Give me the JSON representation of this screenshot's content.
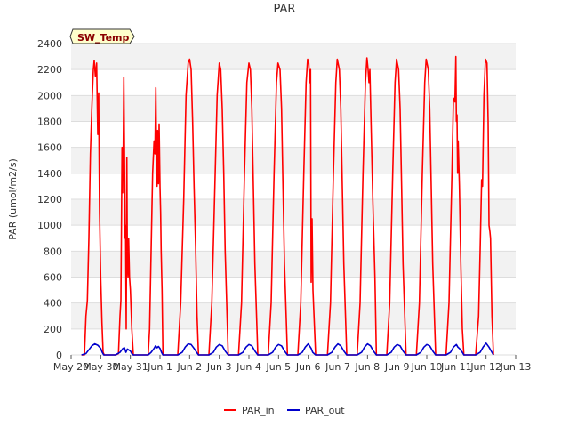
{
  "chart_data": {
    "type": "line",
    "title": "PAR",
    "xlabel": "",
    "ylabel": "PAR (umol/m2/s)",
    "badge": "SW_Temp",
    "ylim": [
      0,
      2400
    ],
    "xlim": [
      0,
      15
    ],
    "y_ticks": [
      0,
      200,
      400,
      600,
      800,
      1000,
      1200,
      1400,
      1600,
      1800,
      2000,
      2200,
      2400
    ],
    "x_ticks": [
      {
        "pos": 0,
        "label": "May 29"
      },
      {
        "pos": 1,
        "label": "May 30"
      },
      {
        "pos": 2,
        "label": "May 31"
      },
      {
        "pos": 3,
        "label": "Jun 1"
      },
      {
        "pos": 4,
        "label": "Jun 2"
      },
      {
        "pos": 5,
        "label": "Jun 3"
      },
      {
        "pos": 6,
        "label": "Jun 4"
      },
      {
        "pos": 7,
        "label": "Jun 5"
      },
      {
        "pos": 8,
        "label": "Jun 6"
      },
      {
        "pos": 9,
        "label": "Jun 7"
      },
      {
        "pos": 10,
        "label": "Jun 8"
      },
      {
        "pos": 11,
        "label": "Jun 9"
      },
      {
        "pos": 12,
        "label": "Jun 10"
      },
      {
        "pos": 13,
        "label": "Jun 11"
      },
      {
        "pos": 14,
        "label": "Jun 12"
      },
      {
        "pos": 15,
        "label": "Jun 13"
      }
    ],
    "series": [
      {
        "name": "PAR_in",
        "color": "#ff0000",
        "points": [
          [
            0.35,
            0
          ],
          [
            0.45,
            0
          ],
          [
            0.5,
            300
          ],
          [
            0.55,
            420
          ],
          [
            0.6,
            900
          ],
          [
            0.65,
            1550
          ],
          [
            0.7,
            1900
          ],
          [
            0.75,
            2200
          ],
          [
            0.78,
            2270
          ],
          [
            0.82,
            2150
          ],
          [
            0.86,
            2250
          ],
          [
            0.9,
            1700
          ],
          [
            0.93,
            2020
          ],
          [
            0.96,
            1100
          ],
          [
            1.0,
            600
          ],
          [
            1.04,
            250
          ],
          [
            1.08,
            20
          ],
          [
            1.12,
            0
          ],
          [
            1.5,
            0
          ],
          [
            1.6,
            10
          ],
          [
            1.65,
            300
          ],
          [
            1.68,
            420
          ],
          [
            1.72,
            1600
          ],
          [
            1.74,
            1250
          ],
          [
            1.76,
            1600
          ],
          [
            1.78,
            2140
          ],
          [
            1.8,
            1600
          ],
          [
            1.82,
            900
          ],
          [
            1.84,
            1000
          ],
          [
            1.86,
            200
          ],
          [
            1.88,
            1520
          ],
          [
            1.9,
            700
          ],
          [
            1.92,
            600
          ],
          [
            1.94,
            900
          ],
          [
            1.97,
            600
          ],
          [
            2.0,
            500
          ],
          [
            2.05,
            200
          ],
          [
            2.1,
            0
          ],
          [
            2.6,
            0
          ],
          [
            2.65,
            200
          ],
          [
            2.7,
            800
          ],
          [
            2.75,
            1400
          ],
          [
            2.8,
            1650
          ],
          [
            2.83,
            1550
          ],
          [
            2.86,
            2060
          ],
          [
            2.88,
            1600
          ],
          [
            2.9,
            1300
          ],
          [
            2.92,
            1730
          ],
          [
            2.95,
            1320
          ],
          [
            2.97,
            1780
          ],
          [
            3.0,
            1300
          ],
          [
            3.02,
            1100
          ],
          [
            3.04,
            800
          ],
          [
            3.07,
            500
          ],
          [
            3.1,
            0
          ],
          [
            3.6,
            0
          ],
          [
            3.7,
            400
          ],
          [
            3.8,
            1200
          ],
          [
            3.88,
            2000
          ],
          [
            3.95,
            2250
          ],
          [
            4.0,
            2280
          ],
          [
            4.05,
            2200
          ],
          [
            4.1,
            1800
          ],
          [
            4.15,
            1300
          ],
          [
            4.2,
            850
          ],
          [
            4.25,
            300
          ],
          [
            4.3,
            0
          ],
          [
            4.65,
            0
          ],
          [
            4.75,
            400
          ],
          [
            4.85,
            1300
          ],
          [
            4.93,
            2000
          ],
          [
            5.0,
            2250
          ],
          [
            5.05,
            2200
          ],
          [
            5.1,
            1900
          ],
          [
            5.15,
            1400
          ],
          [
            5.2,
            800
          ],
          [
            5.3,
            0
          ],
          [
            5.65,
            0
          ],
          [
            5.75,
            400
          ],
          [
            5.85,
            1400
          ],
          [
            5.93,
            2100
          ],
          [
            6.0,
            2250
          ],
          [
            6.05,
            2200
          ],
          [
            6.1,
            1900
          ],
          [
            6.15,
            1300
          ],
          [
            6.2,
            700
          ],
          [
            6.3,
            0
          ],
          [
            6.65,
            0
          ],
          [
            6.75,
            400
          ],
          [
            6.85,
            1400
          ],
          [
            6.93,
            2100
          ],
          [
            6.98,
            2250
          ],
          [
            7.05,
            2200
          ],
          [
            7.1,
            1900
          ],
          [
            7.15,
            1300
          ],
          [
            7.2,
            700
          ],
          [
            7.3,
            0
          ],
          [
            7.65,
            0
          ],
          [
            7.75,
            400
          ],
          [
            7.85,
            1400
          ],
          [
            7.93,
            2100
          ],
          [
            7.98,
            2280
          ],
          [
            8.02,
            2250
          ],
          [
            8.05,
            2100
          ],
          [
            8.08,
            2200
          ],
          [
            8.1,
            560
          ],
          [
            8.13,
            1050
          ],
          [
            8.16,
            500
          ],
          [
            8.25,
            0
          ],
          [
            8.65,
            0
          ],
          [
            8.75,
            400
          ],
          [
            8.85,
            1400
          ],
          [
            8.93,
            2100
          ],
          [
            8.98,
            2280
          ],
          [
            9.05,
            2200
          ],
          [
            9.1,
            1900
          ],
          [
            9.15,
            1300
          ],
          [
            9.2,
            700
          ],
          [
            9.3,
            0
          ],
          [
            9.65,
            0
          ],
          [
            9.75,
            400
          ],
          [
            9.85,
            1400
          ],
          [
            9.93,
            2100
          ],
          [
            9.98,
            2290
          ],
          [
            10.02,
            2200
          ],
          [
            10.05,
            2100
          ],
          [
            10.08,
            2200
          ],
          [
            10.12,
            1800
          ],
          [
            10.18,
            1200
          ],
          [
            10.25,
            600
          ],
          [
            10.3,
            0
          ],
          [
            10.65,
            0
          ],
          [
            10.75,
            400
          ],
          [
            10.85,
            1400
          ],
          [
            10.93,
            2100
          ],
          [
            10.98,
            2280
          ],
          [
            11.05,
            2200
          ],
          [
            11.1,
            1900
          ],
          [
            11.15,
            1300
          ],
          [
            11.2,
            700
          ],
          [
            11.3,
            0
          ],
          [
            11.65,
            0
          ],
          [
            11.75,
            400
          ],
          [
            11.85,
            1400
          ],
          [
            11.93,
            2100
          ],
          [
            11.98,
            2280
          ],
          [
            12.05,
            2200
          ],
          [
            12.1,
            1900
          ],
          [
            12.15,
            1300
          ],
          [
            12.2,
            700
          ],
          [
            12.3,
            0
          ],
          [
            12.65,
            0
          ],
          [
            12.75,
            400
          ],
          [
            12.85,
            1400
          ],
          [
            12.9,
            1980
          ],
          [
            12.95,
            1950
          ],
          [
            12.98,
            2300
          ],
          [
            13.0,
            1800
          ],
          [
            13.02,
            1850
          ],
          [
            13.04,
            1400
          ],
          [
            13.06,
            1650
          ],
          [
            13.1,
            1300
          ],
          [
            13.15,
            700
          ],
          [
            13.2,
            200
          ],
          [
            13.25,
            0
          ],
          [
            13.65,
            0
          ],
          [
            13.75,
            300
          ],
          [
            13.8,
            800
          ],
          [
            13.85,
            1350
          ],
          [
            13.88,
            1300
          ],
          [
            13.93,
            2000
          ],
          [
            13.98,
            2280
          ],
          [
            14.03,
            2250
          ],
          [
            14.07,
            1800
          ],
          [
            14.1,
            1000
          ],
          [
            14.13,
            950
          ],
          [
            14.15,
            900
          ],
          [
            14.2,
            300
          ],
          [
            14.25,
            0
          ]
        ]
      },
      {
        "name": "PAR_out",
        "color": "#0000cc",
        "points": [
          [
            0.35,
            0
          ],
          [
            0.5,
            10
          ],
          [
            0.6,
            40
          ],
          [
            0.7,
            70
          ],
          [
            0.8,
            85
          ],
          [
            0.9,
            75
          ],
          [
            1.0,
            50
          ],
          [
            1.05,
            20
          ],
          [
            1.1,
            0
          ],
          [
            1.5,
            0
          ],
          [
            1.65,
            20
          ],
          [
            1.75,
            50
          ],
          [
            1.8,
            55
          ],
          [
            1.85,
            20
          ],
          [
            1.9,
            45
          ],
          [
            2.0,
            30
          ],
          [
            2.05,
            10
          ],
          [
            2.1,
            0
          ],
          [
            2.6,
            0
          ],
          [
            2.7,
            20
          ],
          [
            2.8,
            50
          ],
          [
            2.85,
            70
          ],
          [
            2.9,
            55
          ],
          [
            2.95,
            65
          ],
          [
            3.0,
            50
          ],
          [
            3.05,
            20
          ],
          [
            3.1,
            0
          ],
          [
            3.6,
            0
          ],
          [
            3.75,
            20
          ],
          [
            3.85,
            60
          ],
          [
            3.95,
            85
          ],
          [
            4.05,
            80
          ],
          [
            4.15,
            50
          ],
          [
            4.25,
            15
          ],
          [
            4.3,
            0
          ],
          [
            4.65,
            0
          ],
          [
            4.8,
            20
          ],
          [
            4.9,
            60
          ],
          [
            5.0,
            80
          ],
          [
            5.1,
            70
          ],
          [
            5.2,
            30
          ],
          [
            5.3,
            0
          ],
          [
            5.65,
            0
          ],
          [
            5.8,
            20
          ],
          [
            5.9,
            60
          ],
          [
            6.0,
            80
          ],
          [
            6.1,
            70
          ],
          [
            6.2,
            30
          ],
          [
            6.3,
            0
          ],
          [
            6.65,
            0
          ],
          [
            6.8,
            20
          ],
          [
            6.9,
            60
          ],
          [
            7.0,
            80
          ],
          [
            7.1,
            70
          ],
          [
            7.2,
            30
          ],
          [
            7.3,
            0
          ],
          [
            7.65,
            0
          ],
          [
            7.8,
            20
          ],
          [
            7.9,
            60
          ],
          [
            8.0,
            85
          ],
          [
            8.1,
            50
          ],
          [
            8.15,
            20
          ],
          [
            8.25,
            0
          ],
          [
            8.65,
            0
          ],
          [
            8.8,
            20
          ],
          [
            8.9,
            60
          ],
          [
            9.0,
            85
          ],
          [
            9.1,
            70
          ],
          [
            9.2,
            30
          ],
          [
            9.3,
            0
          ],
          [
            9.65,
            0
          ],
          [
            9.8,
            20
          ],
          [
            9.9,
            60
          ],
          [
            10.0,
            85
          ],
          [
            10.1,
            70
          ],
          [
            10.2,
            30
          ],
          [
            10.3,
            0
          ],
          [
            10.65,
            0
          ],
          [
            10.8,
            20
          ],
          [
            10.9,
            60
          ],
          [
            11.0,
            80
          ],
          [
            11.1,
            70
          ],
          [
            11.2,
            30
          ],
          [
            11.3,
            0
          ],
          [
            11.65,
            0
          ],
          [
            11.8,
            20
          ],
          [
            11.9,
            60
          ],
          [
            12.0,
            80
          ],
          [
            12.1,
            70
          ],
          [
            12.2,
            30
          ],
          [
            12.3,
            0
          ],
          [
            12.65,
            0
          ],
          [
            12.8,
            20
          ],
          [
            12.9,
            60
          ],
          [
            13.0,
            80
          ],
          [
            13.05,
            60
          ],
          [
            13.1,
            50
          ],
          [
            13.2,
            20
          ],
          [
            13.25,
            0
          ],
          [
            13.65,
            0
          ],
          [
            13.8,
            20
          ],
          [
            13.9,
            60
          ],
          [
            14.0,
            90
          ],
          [
            14.1,
            60
          ],
          [
            14.2,
            20
          ],
          [
            14.25,
            0
          ]
        ]
      }
    ],
    "legend": {
      "position": "bottom-center"
    }
  }
}
